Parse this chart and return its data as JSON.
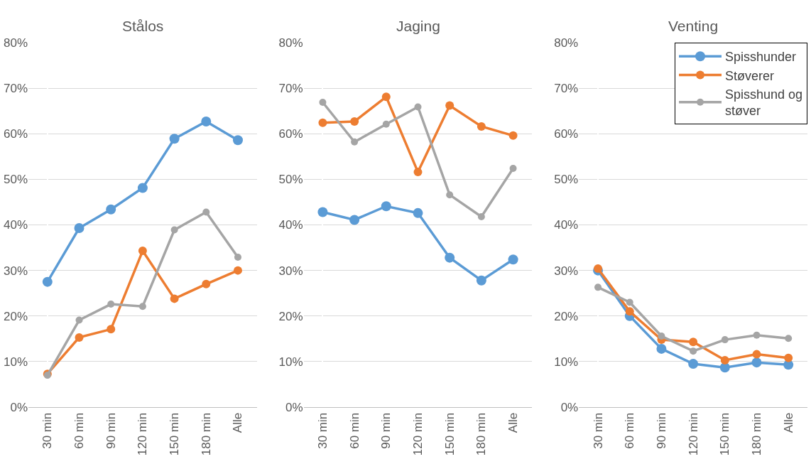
{
  "chart_data": [
    {
      "type": "line",
      "title": "Stålos",
      "categories": [
        "30 min",
        "60 min",
        "90 min",
        "120 min",
        "150 min",
        "180 min",
        "Alle"
      ],
      "ylim": [
        0,
        0.8
      ],
      "yticks": [
        {
          "value": 0,
          "label": "0%"
        },
        {
          "value": 0.1,
          "label": "10%"
        },
        {
          "value": 0.2,
          "label": "20%"
        },
        {
          "value": 0.3,
          "label": "30%"
        },
        {
          "value": 0.4,
          "label": "40%"
        },
        {
          "value": 0.5,
          "label": "50%"
        },
        {
          "value": 0.6,
          "label": "60%"
        },
        {
          "value": 0.7,
          "label": "70%"
        },
        {
          "value": 0.8,
          "label": "80%"
        }
      ],
      "grid": "y",
      "marker": "circle",
      "legend": false,
      "series": [
        {
          "color": "#5b9bd5",
          "values": [
            0.275,
            0.393,
            0.434,
            0.481,
            0.589,
            0.627,
            0.586
          ]
        },
        {
          "color": "#ed7d31",
          "values": [
            0.073,
            0.153,
            0.171,
            0.343,
            0.238,
            0.27,
            0.3
          ]
        },
        {
          "color": "#a5a5a5",
          "values": [
            0.07,
            0.191,
            0.226,
            0.221,
            0.389,
            0.428,
            0.329
          ]
        }
      ]
    },
    {
      "type": "line",
      "title": "Jaging",
      "categories": [
        "30 min",
        "60 min",
        "90 min",
        "120 min",
        "150 min",
        "180 min",
        "Alle"
      ],
      "ylim": [
        0,
        0.8
      ],
      "yticks": [
        {
          "value": 0,
          "label": "0%"
        },
        {
          "value": 0.1,
          "label": "10%"
        },
        {
          "value": 0.2,
          "label": "20%"
        },
        {
          "value": 0.3,
          "label": "30%"
        },
        {
          "value": 0.4,
          "label": "40%"
        },
        {
          "value": 0.5,
          "label": "50%"
        },
        {
          "value": 0.6,
          "label": "60%"
        },
        {
          "value": 0.7,
          "label": "70%"
        },
        {
          "value": 0.8,
          "label": "80%"
        }
      ],
      "grid": "y",
      "marker": "circle",
      "legend": false,
      "series": [
        {
          "color": "#5b9bd5",
          "values": [
            0.428,
            0.411,
            0.441,
            0.426,
            0.328,
            0.278,
            0.324
          ]
        },
        {
          "color": "#ed7d31",
          "values": [
            0.624,
            0.627,
            0.681,
            0.516,
            0.662,
            0.616,
            0.596
          ]
        },
        {
          "color": "#a5a5a5",
          "values": [
            0.669,
            0.582,
            0.621,
            0.659,
            0.466,
            0.418,
            0.524
          ]
        }
      ]
    },
    {
      "type": "line",
      "title": "Venting",
      "categories": [
        "30 min",
        "60 min",
        "90 min",
        "120 min",
        "150 min",
        "180 min",
        "Alle"
      ],
      "ylim": [
        0,
        0.8
      ],
      "yticks": [
        {
          "value": 0,
          "label": "0%"
        },
        {
          "value": 0.1,
          "label": "10%"
        },
        {
          "value": 0.2,
          "label": "20%"
        },
        {
          "value": 0.3,
          "label": "30%"
        },
        {
          "value": 0.4,
          "label": "40%"
        },
        {
          "value": 0.5,
          "label": "50%"
        },
        {
          "value": 0.6,
          "label": "60%"
        },
        {
          "value": 0.7,
          "label": "70%"
        },
        {
          "value": 0.8,
          "label": "80%"
        }
      ],
      "grid": "y",
      "marker": "circle",
      "legend": "top right",
      "series": [
        {
          "name": "Spisshunder",
          "color": "#5b9bd5",
          "values": [
            0.3,
            0.2,
            0.128,
            0.095,
            0.087,
            0.098,
            0.093
          ]
        },
        {
          "name": "Støverer",
          "color": "#ed7d31",
          "values": [
            0.304,
            0.21,
            0.148,
            0.143,
            0.103,
            0.116,
            0.108
          ]
        },
        {
          "name": "Spisshund og støver",
          "color": "#a5a5a5",
          "values": [
            0.263,
            0.23,
            0.156,
            0.123,
            0.148,
            0.158,
            0.151
          ]
        }
      ]
    }
  ]
}
